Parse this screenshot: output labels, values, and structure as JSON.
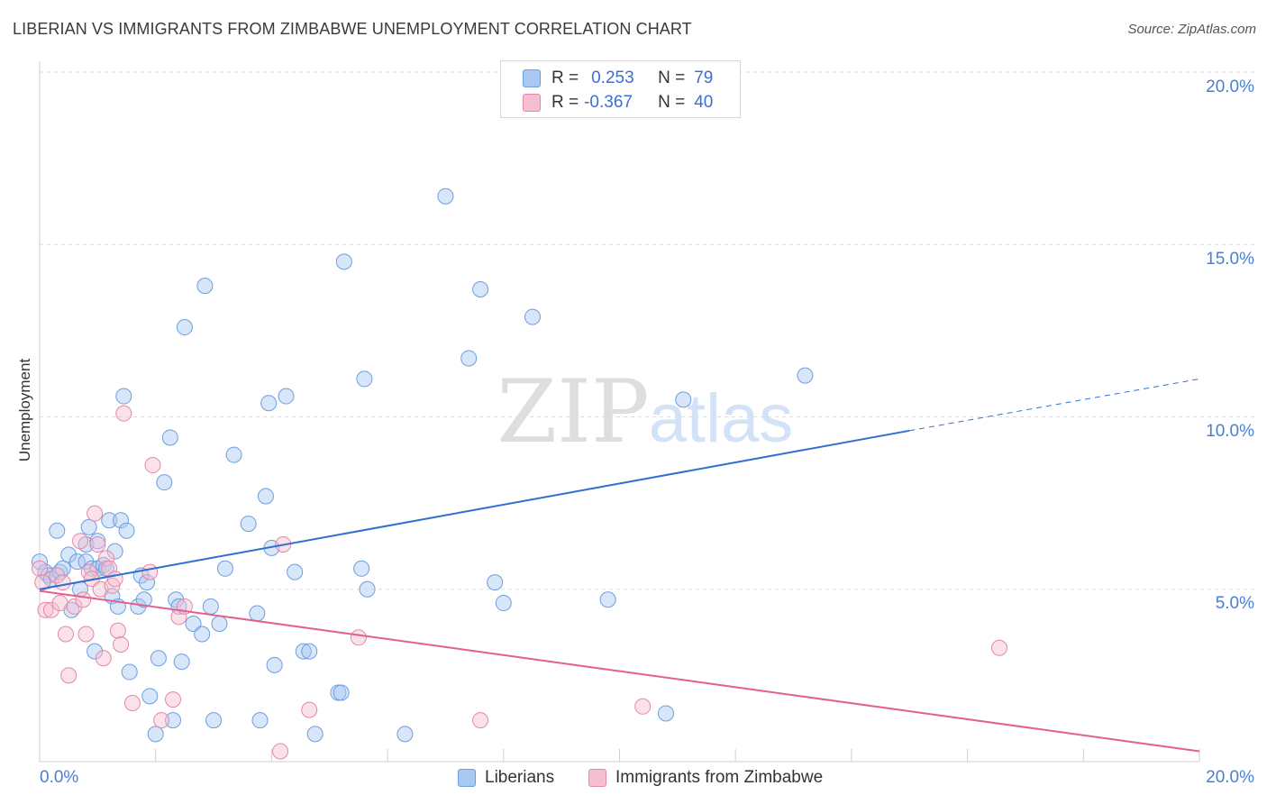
{
  "title": "LIBERIAN VS IMMIGRANTS FROM ZIMBABWE UNEMPLOYMENT CORRELATION CHART",
  "source": "Source: ZipAtlas.com",
  "watermark": {
    "zip": "ZIP",
    "atlas": "atlas"
  },
  "legend": {
    "rows": [
      {
        "r_label": "R =",
        "r_value": "0.253",
        "n_label": "N =",
        "n_value": "79",
        "color": "#a9c8f2",
        "border": "#6d9ee0"
      },
      {
        "r_label": "R =",
        "r_value": "-0.367",
        "n_label": "N =",
        "n_value": "40",
        "color": "#f6bfd1",
        "border": "#e687a8"
      }
    ]
  },
  "bottom_legend": [
    "Liberians",
    "Immigrants from Zimbabwe"
  ],
  "chart_data": {
    "type": "scatter",
    "xlabel": "",
    "ylabel": "Unemployment",
    "xlim": [
      0,
      20
    ],
    "ylim": [
      0,
      20
    ],
    "x_tick_labels": [
      "0.0%",
      "20.0%"
    ],
    "y_tick_labels": [
      "5.0%",
      "10.0%",
      "15.0%",
      "20.0%"
    ],
    "y_tick_values": [
      5,
      10,
      15,
      20
    ],
    "series": [
      {
        "name": "Liberians",
        "color": "#6d9ee0",
        "fill": "rgba(169,200,242,0.45)",
        "trend": {
          "x0": 0,
          "y0": 5.0,
          "x1": 15.0,
          "y1": 9.6,
          "dash_x1": 20.0,
          "dash_y1": 11.1,
          "color": "#2f6fd0"
        },
        "points": [
          [
            0.0,
            5.8
          ],
          [
            0.1,
            5.5
          ],
          [
            0.15,
            5.4
          ],
          [
            0.2,
            5.3
          ],
          [
            0.3,
            6.7
          ],
          [
            0.35,
            5.5
          ],
          [
            0.4,
            5.6
          ],
          [
            0.5,
            6.0
          ],
          [
            0.55,
            4.4
          ],
          [
            0.65,
            5.8
          ],
          [
            0.7,
            5.0
          ],
          [
            0.8,
            5.8
          ],
          [
            0.8,
            6.3
          ],
          [
            0.85,
            6.8
          ],
          [
            0.9,
            5.6
          ],
          [
            0.95,
            3.2
          ],
          [
            1.0,
            6.4
          ],
          [
            1.0,
            5.6
          ],
          [
            1.1,
            5.7
          ],
          [
            1.15,
            5.6
          ],
          [
            1.2,
            7.0
          ],
          [
            1.25,
            4.8
          ],
          [
            1.3,
            6.1
          ],
          [
            1.35,
            4.5
          ],
          [
            1.4,
            7.0
          ],
          [
            1.45,
            10.6
          ],
          [
            1.5,
            6.7
          ],
          [
            1.55,
            2.6
          ],
          [
            1.7,
            4.5
          ],
          [
            1.75,
            5.4
          ],
          [
            1.8,
            4.7
          ],
          [
            1.85,
            5.2
          ],
          [
            1.9,
            1.9
          ],
          [
            2.0,
            0.8
          ],
          [
            2.05,
            3.0
          ],
          [
            2.15,
            8.1
          ],
          [
            2.25,
            9.4
          ],
          [
            2.3,
            1.2
          ],
          [
            2.35,
            4.7
          ],
          [
            2.4,
            4.5
          ],
          [
            2.45,
            2.9
          ],
          [
            2.5,
            12.6
          ],
          [
            2.65,
            4.0
          ],
          [
            2.8,
            3.7
          ],
          [
            2.85,
            13.8
          ],
          [
            2.95,
            4.5
          ],
          [
            3.0,
            1.2
          ],
          [
            3.1,
            4.0
          ],
          [
            3.2,
            5.6
          ],
          [
            3.35,
            8.9
          ],
          [
            3.6,
            6.9
          ],
          [
            3.75,
            4.3
          ],
          [
            3.8,
            1.2
          ],
          [
            3.9,
            7.7
          ],
          [
            3.95,
            10.4
          ],
          [
            4.0,
            6.2
          ],
          [
            4.05,
            2.8
          ],
          [
            4.25,
            10.6
          ],
          [
            4.4,
            5.5
          ],
          [
            4.55,
            3.2
          ],
          [
            4.65,
            3.2
          ],
          [
            4.75,
            0.8
          ],
          [
            5.15,
            2.0
          ],
          [
            5.2,
            2.0
          ],
          [
            5.25,
            14.5
          ],
          [
            5.55,
            5.6
          ],
          [
            5.6,
            11.1
          ],
          [
            5.65,
            5.0
          ],
          [
            6.3,
            0.8
          ],
          [
            7.0,
            16.4
          ],
          [
            7.4,
            11.7
          ],
          [
            7.6,
            13.7
          ],
          [
            7.85,
            5.2
          ],
          [
            8.0,
            4.6
          ],
          [
            8.5,
            12.9
          ],
          [
            9.8,
            4.7
          ],
          [
            10.8,
            1.4
          ],
          [
            11.1,
            10.5
          ],
          [
            13.2,
            11.2
          ]
        ]
      },
      {
        "name": "Immigrants from Zimbabwe",
        "color": "#e687a8",
        "fill": "rgba(246,191,209,0.45)",
        "trend": {
          "x0": 0,
          "y0": 4.95,
          "x1": 20.0,
          "y1": 0.3,
          "color": "#e2608e"
        },
        "points": [
          [
            0.0,
            5.6
          ],
          [
            0.05,
            5.2
          ],
          [
            0.1,
            4.4
          ],
          [
            0.2,
            4.4
          ],
          [
            0.3,
            5.4
          ],
          [
            0.35,
            4.6
          ],
          [
            0.4,
            5.2
          ],
          [
            0.45,
            3.7
          ],
          [
            0.5,
            2.5
          ],
          [
            0.6,
            4.5
          ],
          [
            0.7,
            6.4
          ],
          [
            0.75,
            4.7
          ],
          [
            0.8,
            3.7
          ],
          [
            0.85,
            5.5
          ],
          [
            0.9,
            5.3
          ],
          [
            0.95,
            7.2
          ],
          [
            1.0,
            6.3
          ],
          [
            1.05,
            5.0
          ],
          [
            1.1,
            3.0
          ],
          [
            1.15,
            5.9
          ],
          [
            1.2,
            5.6
          ],
          [
            1.25,
            5.1
          ],
          [
            1.3,
            5.3
          ],
          [
            1.35,
            3.8
          ],
          [
            1.4,
            3.4
          ],
          [
            1.45,
            10.1
          ],
          [
            1.6,
            1.7
          ],
          [
            1.9,
            5.5
          ],
          [
            1.95,
            8.6
          ],
          [
            2.1,
            1.2
          ],
          [
            2.3,
            1.8
          ],
          [
            2.4,
            4.2
          ],
          [
            4.2,
            6.3
          ],
          [
            4.15,
            0.3
          ],
          [
            4.65,
            1.5
          ],
          [
            5.5,
            3.6
          ],
          [
            7.6,
            1.2
          ],
          [
            10.4,
            1.6
          ],
          [
            16.55,
            3.3
          ],
          [
            2.5,
            4.5
          ]
        ]
      }
    ]
  }
}
